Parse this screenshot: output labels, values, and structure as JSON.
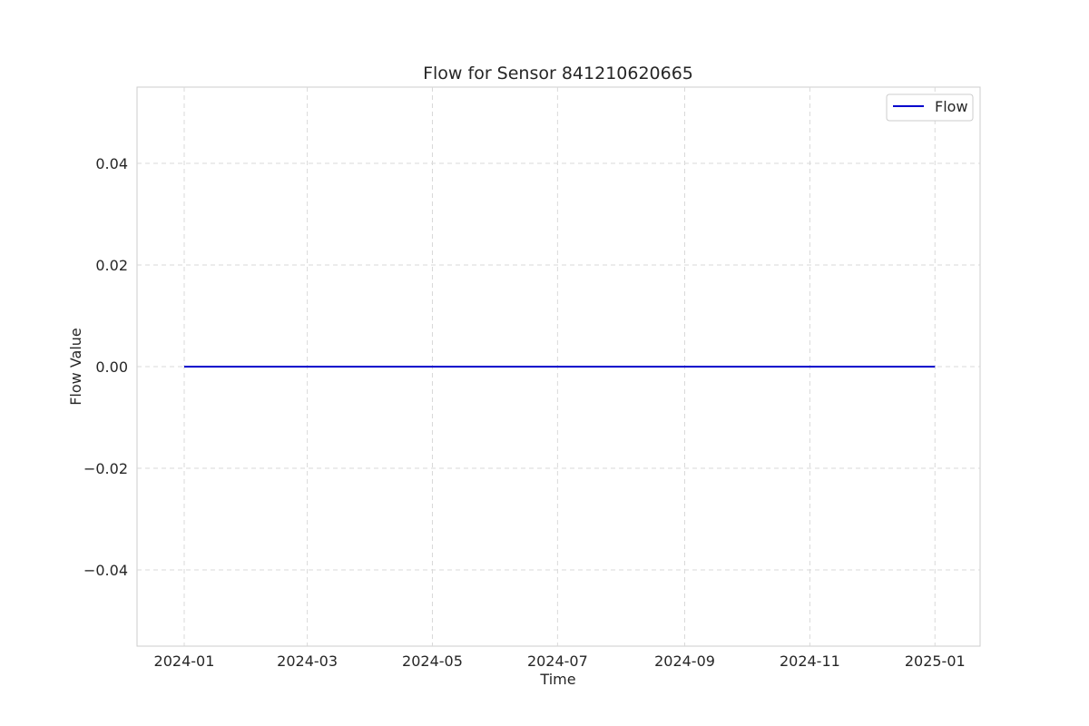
{
  "chart_data": {
    "type": "line",
    "title": "Flow for Sensor 841210620665",
    "xlabel": "Time",
    "ylabel": "Flow Value",
    "x_ticks": [
      "2024-01",
      "2024-03",
      "2024-05",
      "2024-07",
      "2024-09",
      "2024-11",
      "2025-01"
    ],
    "y_ticks": [
      "0.04",
      "0.02",
      "0.00",
      "−0.02",
      "−0.04"
    ],
    "xlim": [
      "2023-12-09",
      "2025-01-23"
    ],
    "ylim": [
      -0.055,
      0.055
    ],
    "grid": true,
    "legend_position": "top-right",
    "series": [
      {
        "name": "Flow",
        "color": "#0000cc",
        "x": [
          "2024-01-01",
          "2024-03-01",
          "2024-05-01",
          "2024-07-01",
          "2024-09-01",
          "2024-11-01",
          "2025-01-01"
        ],
        "y": [
          0,
          0,
          0,
          0,
          0,
          0,
          0
        ]
      }
    ]
  }
}
